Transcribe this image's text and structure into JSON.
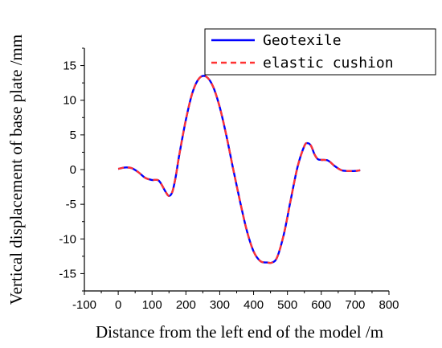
{
  "chart_data": {
    "type": "line",
    "xlabel": "Distance from the left end of the model /m",
    "ylabel": "Vertical displacement of base plate /mm",
    "xlim": [
      -100,
      800
    ],
    "ylim": [
      -17.5,
      17.5
    ],
    "x_ticks": [
      -100,
      0,
      100,
      200,
      300,
      400,
      500,
      600,
      700,
      800
    ],
    "y_ticks": [
      -15,
      -10,
      -5,
      0,
      5,
      10,
      15
    ],
    "grid": false,
    "legend_position": "top-right",
    "series": [
      {
        "name": "Geotexile",
        "color": "#0000ff",
        "line_style": "solid",
        "x": [
          0,
          20,
          40,
          60,
          80,
          100,
          120,
          140,
          150,
          160,
          170,
          180,
          200,
          220,
          240,
          260,
          280,
          300,
          320,
          340,
          360,
          380,
          400,
          420,
          440,
          455,
          470,
          490,
          510,
          530,
          550,
          560,
          570,
          580,
          590,
          600,
          620,
          640,
          660,
          680,
          700,
          715
        ],
        "y": [
          0.1,
          0.3,
          0.2,
          -0.4,
          -1.2,
          -1.5,
          -1.6,
          -3.2,
          -3.8,
          -3.2,
          -1.0,
          2.0,
          7.2,
          11.2,
          13.2,
          13.4,
          12.0,
          9.0,
          4.8,
          0.0,
          -4.6,
          -8.8,
          -11.8,
          -13.2,
          -13.4,
          -13.4,
          -12.6,
          -9.2,
          -4.3,
          0.4,
          3.4,
          3.8,
          3.4,
          2.2,
          1.5,
          1.4,
          1.3,
          0.5,
          -0.1,
          -0.2,
          -0.2,
          -0.1
        ]
      },
      {
        "name": "elastic cushion",
        "color": "#ff3333",
        "line_style": "dashed",
        "x": [
          0,
          20,
          40,
          60,
          80,
          100,
          120,
          140,
          150,
          160,
          170,
          180,
          200,
          220,
          240,
          260,
          280,
          300,
          320,
          340,
          360,
          380,
          400,
          420,
          440,
          455,
          470,
          490,
          510,
          530,
          550,
          560,
          570,
          580,
          590,
          600,
          620,
          640,
          660,
          680,
          700,
          715
        ],
        "y": [
          0.1,
          0.3,
          0.2,
          -0.4,
          -1.2,
          -1.5,
          -1.6,
          -3.2,
          -3.8,
          -3.2,
          -1.0,
          2.0,
          7.2,
          11.2,
          13.2,
          13.4,
          12.0,
          9.0,
          4.8,
          0.0,
          -4.6,
          -8.8,
          -11.8,
          -13.2,
          -13.4,
          -13.4,
          -12.6,
          -9.2,
          -4.3,
          0.4,
          3.4,
          3.8,
          3.4,
          2.2,
          1.5,
          1.4,
          1.3,
          0.5,
          -0.1,
          -0.2,
          -0.2,
          -0.1
        ]
      }
    ]
  }
}
